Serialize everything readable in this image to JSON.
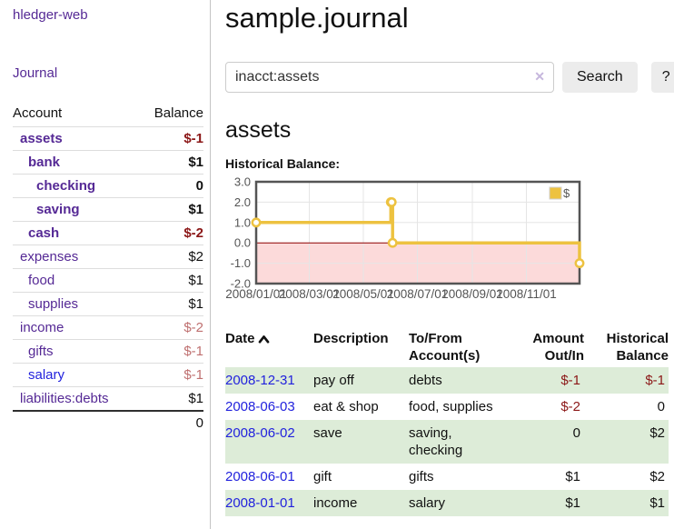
{
  "app": {
    "brand": "hledger-web",
    "nav": {
      "journal": "Journal"
    }
  },
  "sidebar": {
    "table": {
      "account": "Account",
      "balance": "Balance"
    },
    "accounts": [
      {
        "name": "assets",
        "balance": "$-1",
        "indent": 0,
        "emphasis": true,
        "link": "purple",
        "tone": "neg"
      },
      {
        "name": "bank",
        "balance": "$1",
        "indent": 1,
        "emphasis": true,
        "link": "purple",
        "tone": "pos"
      },
      {
        "name": "checking",
        "balance": "0",
        "indent": 2,
        "emphasis": true,
        "link": "purple",
        "tone": "pos"
      },
      {
        "name": "saving",
        "balance": "$1",
        "indent": 2,
        "emphasis": true,
        "link": "purple",
        "tone": "pos"
      },
      {
        "name": "cash",
        "balance": "$-2",
        "indent": 1,
        "emphasis": true,
        "link": "purple",
        "tone": "neg"
      },
      {
        "name": "expenses",
        "balance": "$2",
        "indent": 0,
        "emphasis": false,
        "link": "purple",
        "tone": "pos"
      },
      {
        "name": "food",
        "balance": "$1",
        "indent": 1,
        "emphasis": false,
        "link": "purple",
        "tone": "pos"
      },
      {
        "name": "supplies",
        "balance": "$1",
        "indent": 1,
        "emphasis": false,
        "link": "purple",
        "tone": "pos"
      },
      {
        "name": "income",
        "balance": "$-2",
        "indent": 0,
        "emphasis": false,
        "link": "purple",
        "tone": "neg-soft"
      },
      {
        "name": "gifts",
        "balance": "$-1",
        "indent": 1,
        "emphasis": false,
        "link": "purple",
        "tone": "neg-soft"
      },
      {
        "name": "salary",
        "balance": "$-1",
        "indent": 1,
        "emphasis": false,
        "link": "blue",
        "tone": "neg-soft"
      },
      {
        "name": "liabilities:debts",
        "balance": "$1",
        "indent": 0,
        "emphasis": false,
        "link": "purple",
        "tone": "pos"
      }
    ],
    "total": "0"
  },
  "main": {
    "title": "sample.journal",
    "search": {
      "value": "inacct:assets",
      "clear_glyph": "✕",
      "button_label": "Search",
      "help_label": "?"
    },
    "account_heading": "assets",
    "chart_title": "Historical Balance:"
  },
  "chart_data": {
    "type": "line",
    "step": true,
    "series": [
      {
        "name": "$",
        "points": [
          [
            "2008-01-01",
            1
          ],
          [
            "2008-06-01",
            2
          ],
          [
            "2008-06-02",
            2
          ],
          [
            "2008-06-03",
            0
          ],
          [
            "2008-12-31",
            -1
          ]
        ]
      }
    ],
    "x_range": [
      "2008-01-01",
      "2008-12-31"
    ],
    "ylim": [
      -2,
      3
    ],
    "yticks": [
      {
        "value": 3,
        "label": "3.0"
      },
      {
        "value": 2,
        "label": "2.0"
      },
      {
        "value": 1,
        "label": "1.0"
      },
      {
        "value": 0,
        "label": "0.0"
      },
      {
        "value": -1,
        "label": "-1.0"
      },
      {
        "value": -2,
        "label": "-2.0"
      }
    ],
    "xticks": [
      {
        "date": "2008-01-01",
        "label": "2008/01/01"
      },
      {
        "date": "2008-03-01",
        "label": "2008/03/01"
      },
      {
        "date": "2008-05-01",
        "label": "2008/05/01"
      },
      {
        "date": "2008-07-01",
        "label": "2008/07/01"
      },
      {
        "date": "2008-09-01",
        "label": "2008/09/01"
      },
      {
        "date": "2008-11-01",
        "label": "2008/11/01"
      }
    ],
    "legend_position": "top-right",
    "grid": true,
    "colors": {
      "line": "#edc240",
      "marker_fill": "#ffffff",
      "negative_fill": "#fcdada",
      "zero_line": "#8b0000",
      "grid_line": "#e5e5e5",
      "border": "#545454",
      "tick_text": "#545454"
    }
  },
  "register": {
    "headers": {
      "date": "Date",
      "description": "Description",
      "accounts": "To/From Account(s)",
      "amount": "Amount Out/In",
      "balance": "Historical Balance"
    },
    "rows": [
      {
        "date": "2008-12-31",
        "description": "pay off",
        "accounts": "debts",
        "amount": "$-1",
        "balance": "$-1",
        "amount_negative": true,
        "balance_negative": true
      },
      {
        "date": "2008-06-03",
        "description": "eat & shop",
        "accounts": "food, supplies",
        "amount": "$-2",
        "balance": "0",
        "amount_negative": true,
        "balance_negative": false
      },
      {
        "date": "2008-06-02",
        "description": "save",
        "accounts": "saving, checking",
        "amount": "0",
        "balance": "$2",
        "amount_negative": false,
        "balance_negative": false
      },
      {
        "date": "2008-06-01",
        "description": "gift",
        "accounts": "gifts",
        "amount": "$1",
        "balance": "$2",
        "amount_negative": false,
        "balance_negative": false
      },
      {
        "date": "2008-01-01",
        "description": "income",
        "accounts": "salary",
        "amount": "$1",
        "balance": "$1",
        "amount_negative": false,
        "balance_negative": false
      }
    ]
  }
}
